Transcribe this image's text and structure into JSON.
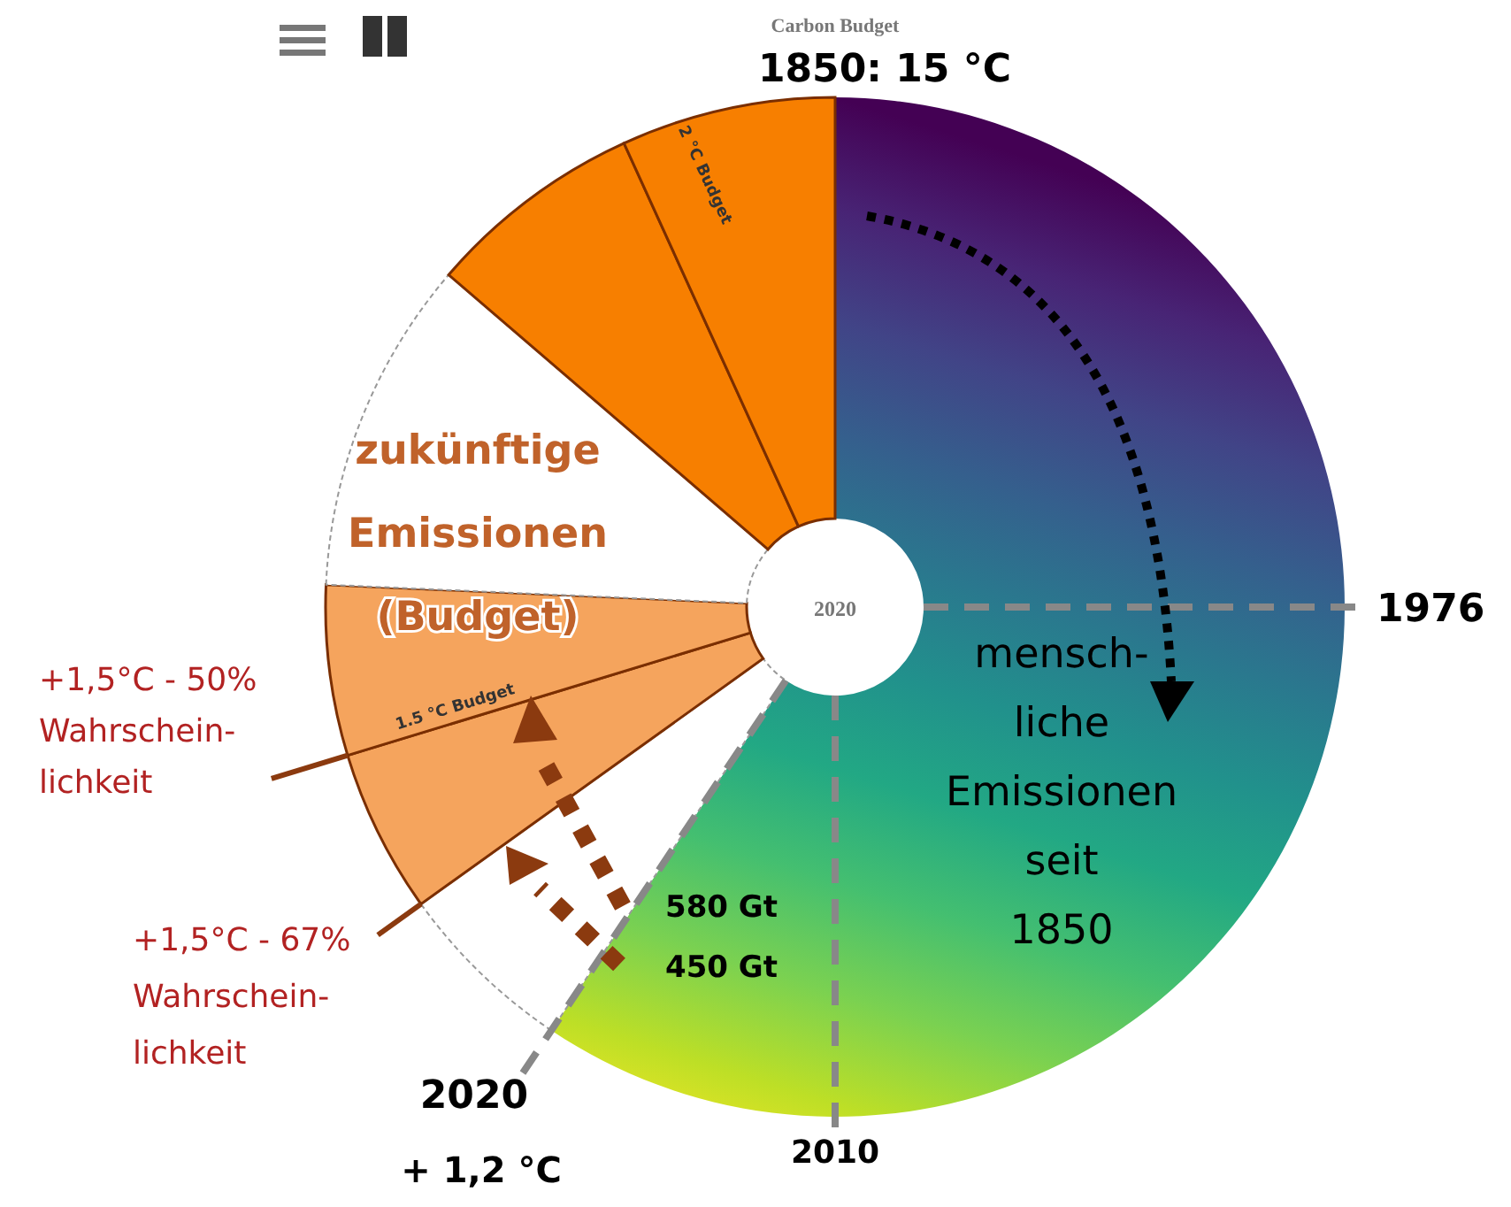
{
  "chart_data": {
    "type": "donut",
    "categories": [
      null,
      null,
      null,
      null,
      null,
      null,
      null
    ],
    "values": [
      59.4,
      5.7,
      5.2,
      5.4,
      10.6,
      6.9,
      6.8
    ],
    "colors": [
      "#21918c",
      "#ffffff",
      "#f5a45d",
      "#f5a45d",
      "#ffffff",
      "#f77f00",
      "#f77f00"
    ],
    "annotations": [
      "Carbon Budget",
      "1850: 15 °C",
      "1976",
      "2010",
      "2020",
      "+ 1,2 °C",
      "2020",
      "zukünftige\nEmissionen\n(Budget)",
      "mensch-\nliche\nEmissionen\nseit\n1850",
      "+1,5°C - 50%\nWahrschein-\nlichkeit",
      "+1,5°C - 67%\nWahrschein-\nlichkeit",
      "580 Gt",
      "450 Gt",
      "1.5 °C Budget",
      "2 °C Budget"
    ]
  }
}
